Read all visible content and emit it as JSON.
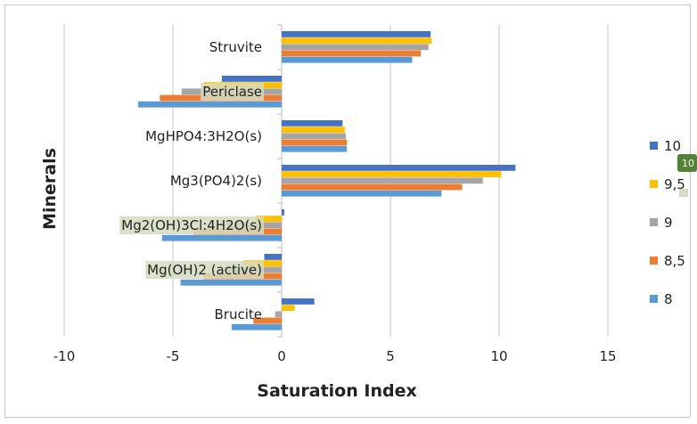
{
  "chart_data": {
    "type": "bar",
    "orientation": "horizontal",
    "xlabel": "Saturation Index",
    "ylabel": "Minerals",
    "xlim": [
      -10,
      15
    ],
    "xticks": [
      -10,
      -5,
      0,
      5,
      10,
      15
    ],
    "grid": "vertical",
    "legend_position": "right",
    "categories": [
      "Struvite",
      "Periclase",
      "MgHPO4:3H2O(s)",
      "Mg3(PO4)2(s)",
      "Mg2(OH)3Cl:4H2O(s)",
      "Mg(OH)2 (active)",
      "Brucite"
    ],
    "series": [
      {
        "name": "10",
        "color": "#4472C4",
        "values": [
          6.85,
          -2.75,
          2.8,
          10.75,
          0.12,
          -0.8,
          1.5
        ]
      },
      {
        "name": "9,5",
        "color": "#FFC000",
        "values": [
          6.9,
          -3.6,
          2.9,
          10.1,
          -1.2,
          -1.75,
          0.6
        ]
      },
      {
        "name": "9",
        "color": "#A5A5A5",
        "values": [
          6.75,
          -4.6,
          2.95,
          9.25,
          -2.5,
          -2.65,
          -0.3
        ]
      },
      {
        "name": "8,5",
        "color": "#ED7D31",
        "values": [
          6.4,
          -5.6,
          3.0,
          8.3,
          -4.05,
          -3.6,
          -1.3
        ]
      },
      {
        "name": "8",
        "color": "#5B9BD5",
        "values": [
          6.0,
          -6.6,
          3.0,
          7.35,
          -5.5,
          -4.65,
          -2.3
        ]
      }
    ],
    "highlighted_labels": [
      "Periclase",
      "Mg2(OH)3Cl:4H2O(s)",
      "Mg(OH)2 (active)",
      "9,5"
    ],
    "badge_text": "10"
  }
}
